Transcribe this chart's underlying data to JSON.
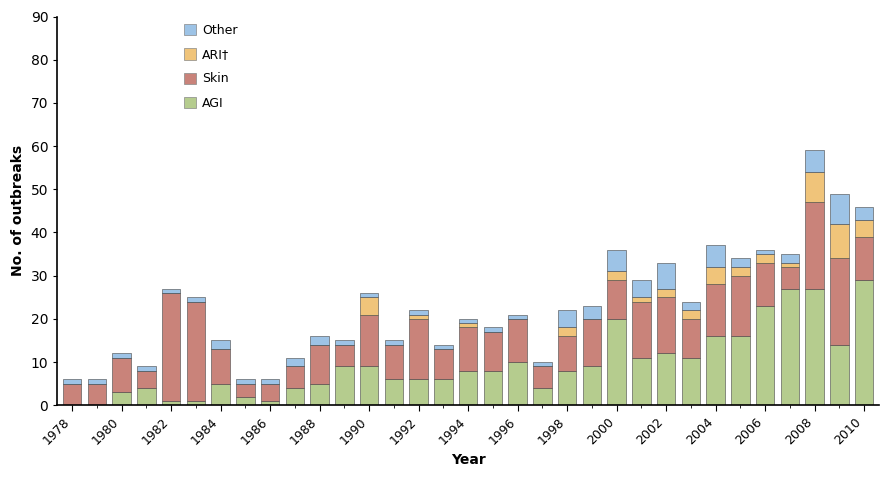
{
  "years": [
    1978,
    1979,
    1980,
    1981,
    1982,
    1983,
    1984,
    1985,
    1986,
    1987,
    1988,
    1989,
    1990,
    1991,
    1992,
    1993,
    1994,
    1995,
    1996,
    1997,
    1998,
    1999,
    2000,
    2001,
    2002,
    2003,
    2004,
    2005,
    2006,
    2007,
    2008,
    2009,
    2010
  ],
  "AGI": [
    0,
    0,
    3,
    4,
    1,
    1,
    5,
    2,
    1,
    4,
    5,
    9,
    9,
    6,
    6,
    6,
    8,
    8,
    10,
    4,
    8,
    9,
    20,
    11,
    12,
    11,
    16,
    16,
    23,
    27,
    27,
    14,
    29
  ],
  "Skin": [
    5,
    5,
    8,
    4,
    25,
    23,
    8,
    3,
    4,
    5,
    9,
    5,
    12,
    8,
    14,
    7,
    10,
    9,
    10,
    5,
    8,
    11,
    9,
    13,
    13,
    9,
    12,
    14,
    10,
    5,
    20,
    20,
    10
  ],
  "ARI": [
    0,
    0,
    0,
    0,
    0,
    0,
    0,
    0,
    0,
    0,
    0,
    0,
    4,
    0,
    1,
    0,
    1,
    0,
    0,
    0,
    2,
    0,
    2,
    1,
    2,
    2,
    4,
    2,
    2,
    1,
    7,
    8,
    4
  ],
  "Other": [
    1,
    1,
    1,
    1,
    1,
    1,
    2,
    1,
    1,
    2,
    2,
    1,
    1,
    1,
    1,
    1,
    1,
    1,
    1,
    1,
    4,
    3,
    5,
    4,
    6,
    2,
    5,
    2,
    1,
    2,
    5,
    7,
    3
  ],
  "color_AGI": "#b5cc8e",
  "color_Skin": "#c9837a",
  "color_ARI": "#f0c47a",
  "color_Other": "#9dc3e6",
  "xlabel": "Year",
  "ylabel": "No. of outbreaks",
  "ylim": [
    0,
    90
  ],
  "yticks": [
    0,
    10,
    20,
    30,
    40,
    50,
    60,
    70,
    80,
    90
  ],
  "background_color": "#ffffff",
  "bar_width": 0.75,
  "figsize": [
    8.9,
    4.78
  ],
  "dpi": 100
}
